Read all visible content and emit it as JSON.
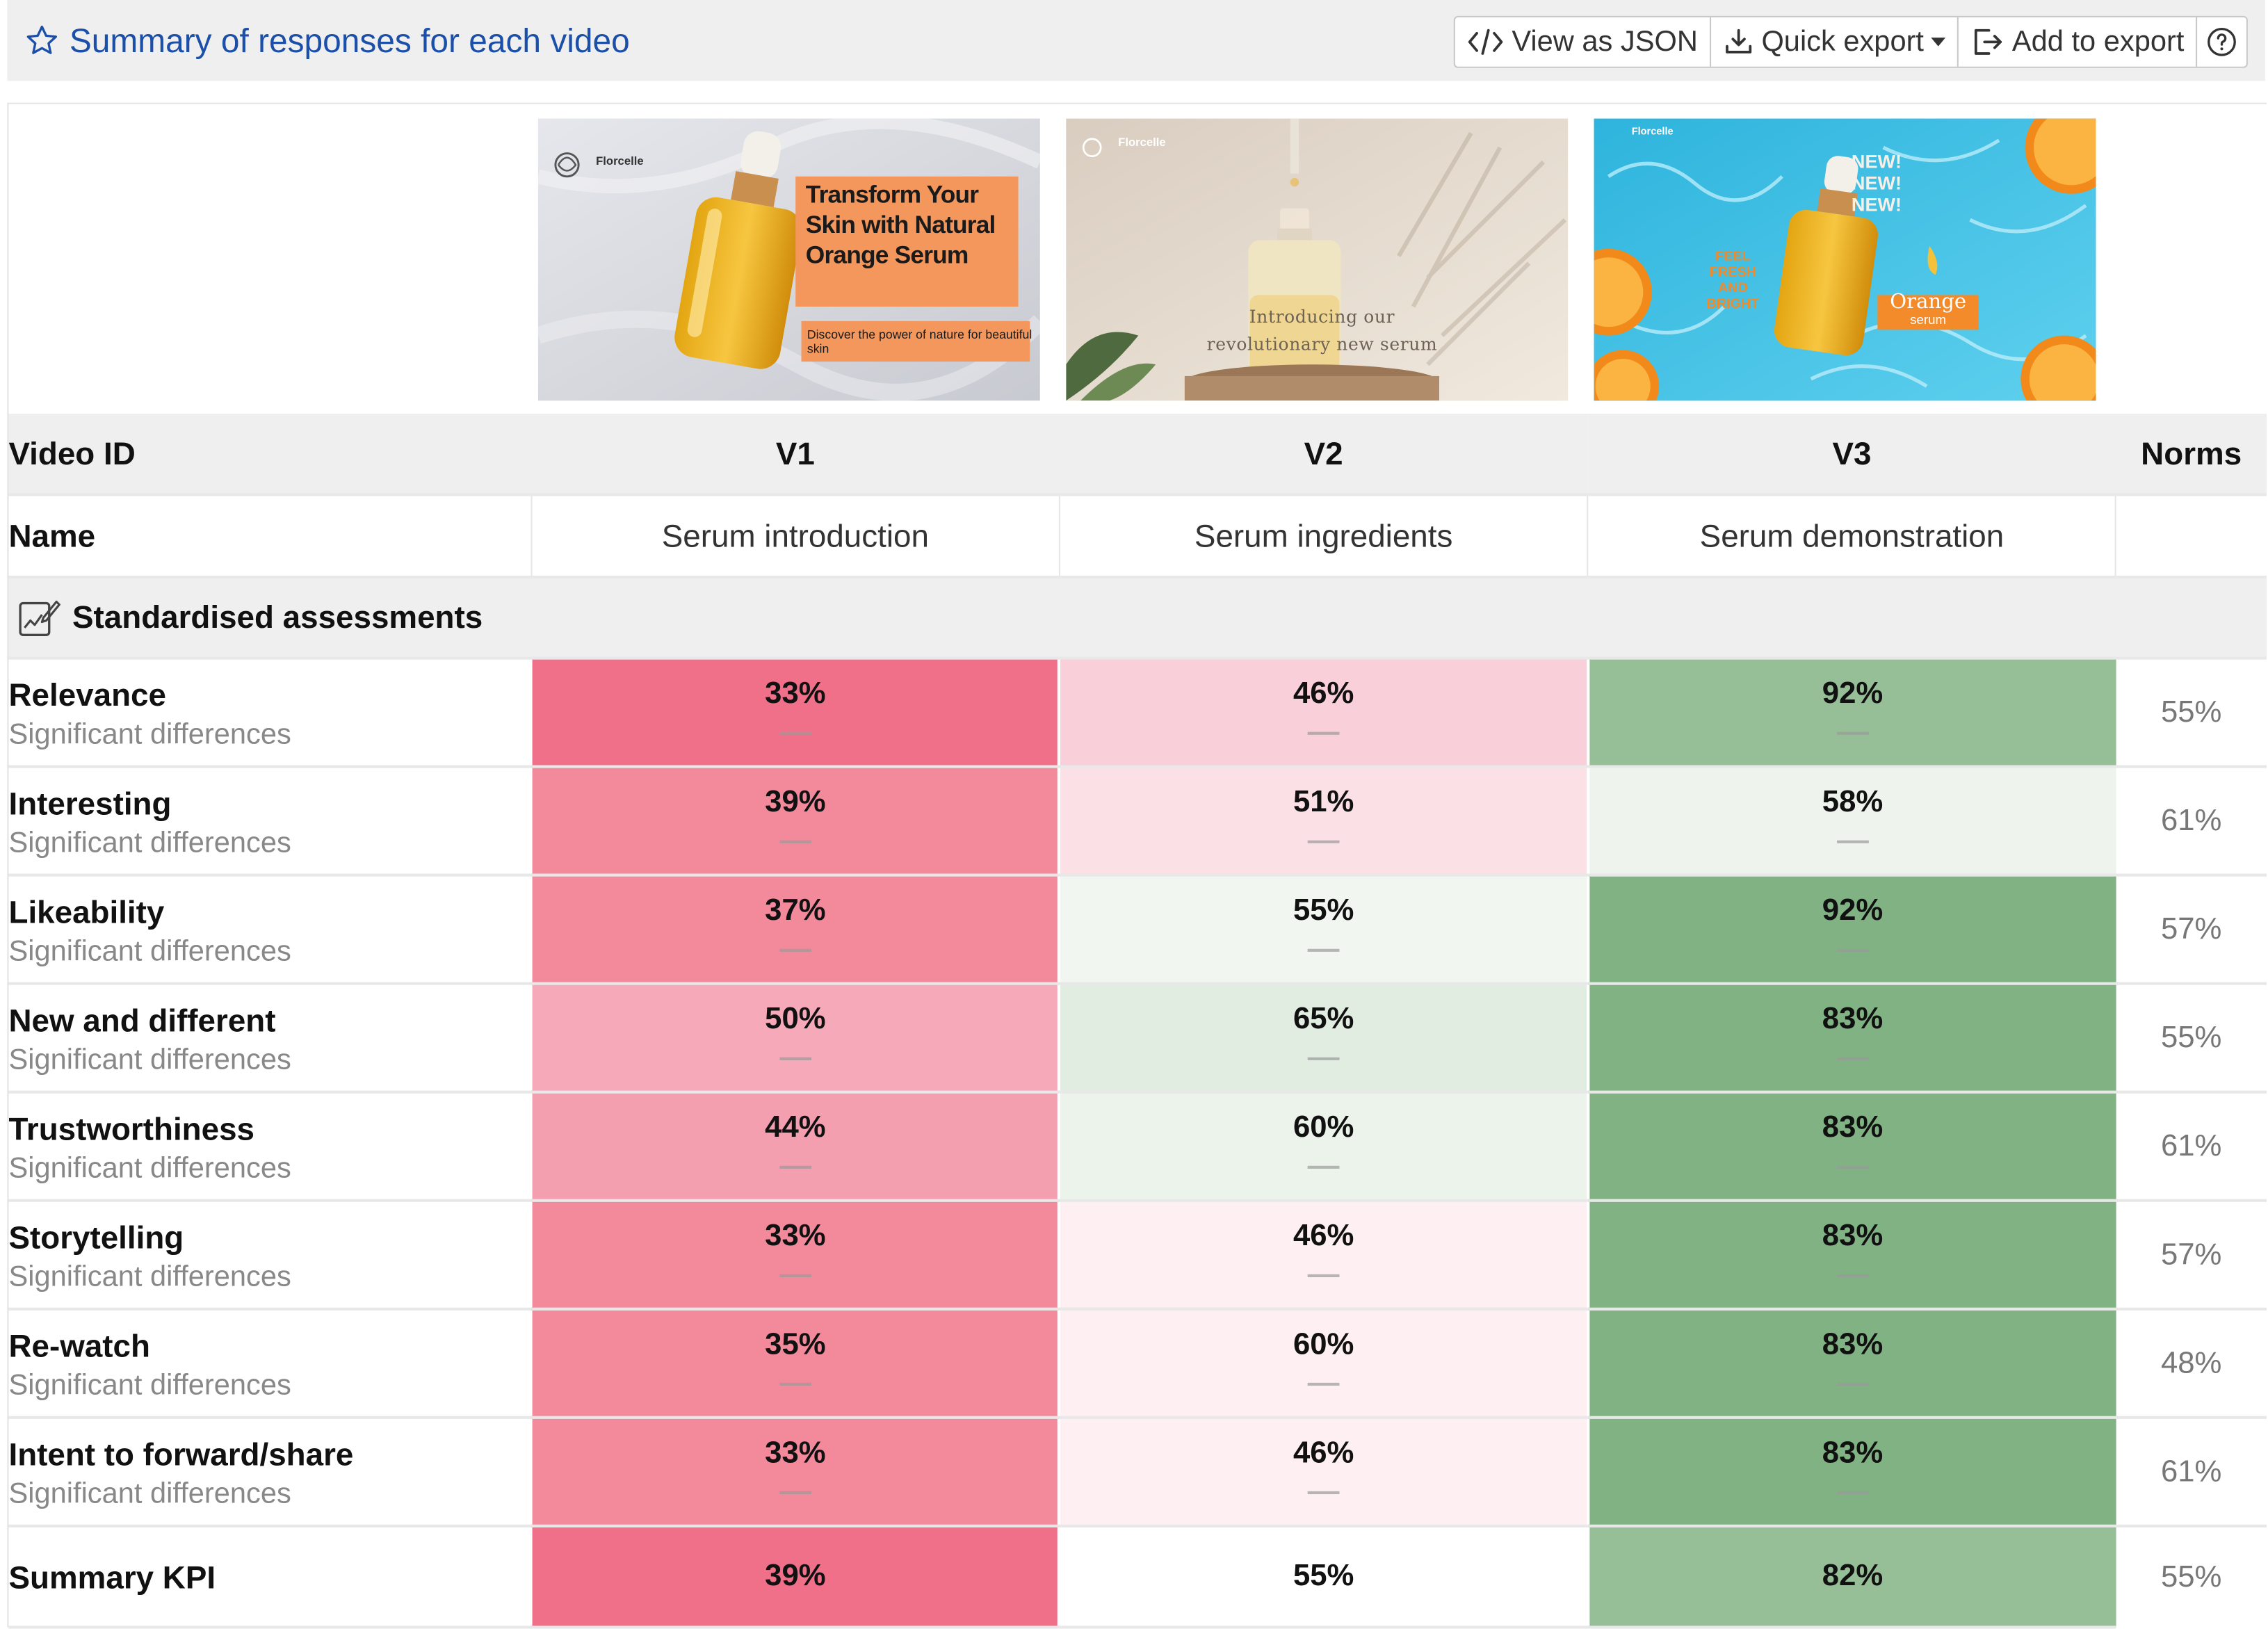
{
  "header": {
    "title": "Summary of responses for each video",
    "toolbar": {
      "view_json": "View as JSON",
      "quick_export": "Quick export",
      "add_to_export": "Add to export"
    }
  },
  "thumbs": [
    {
      "brand": "Florcelle",
      "headline": "Transform Your Skin with Natural Orange Serum",
      "sub": "Discover the power of nature for beautiful skin"
    },
    {
      "brand": "Florcelle",
      "text": "Introducing our revolutionary new serum"
    },
    {
      "brand": "Florcelle",
      "new": "NEW! NEW! NEW!",
      "feel": "FEEL FRESH AND BRIGHT",
      "tag1": "Orange",
      "tag2": "serum"
    }
  ],
  "table": {
    "video_id_label": "Video ID",
    "name_label": "Name",
    "norms_label": "Norms",
    "videos": [
      {
        "id": "V1",
        "name": "Serum introduction"
      },
      {
        "id": "V2",
        "name": "Serum ingredients"
      },
      {
        "id": "V3",
        "name": "Serum demonstration"
      }
    ],
    "section_label": "Standardised assessments",
    "sub_label": "Significant differences",
    "dash": "—",
    "metrics": [
      {
        "name": "Relevance",
        "values": [
          "33%",
          "46%",
          "92%"
        ],
        "colors": [
          "#f07089",
          "#f9cfd9",
          "#96bf97"
        ],
        "norm": "55%"
      },
      {
        "name": "Interesting",
        "values": [
          "39%",
          "51%",
          "58%"
        ],
        "colors": [
          "#f38a9c",
          "#fbe1e6",
          "#eef3ee"
        ],
        "norm": "61%"
      },
      {
        "name": "Likeability",
        "values": [
          "37%",
          "55%",
          "92%"
        ],
        "colors": [
          "#f38a9c",
          "#f1f6f0",
          "#80b283"
        ],
        "norm": "57%"
      },
      {
        "name": "New and different",
        "values": [
          "50%",
          "65%",
          "83%"
        ],
        "colors": [
          "#f6a9b9",
          "#e2ede2",
          "#80b283"
        ],
        "norm": "55%"
      },
      {
        "name": "Trustworthiness",
        "values": [
          "44%",
          "60%",
          "83%"
        ],
        "colors": [
          "#f49fb0",
          "#ebf3ea",
          "#80b283"
        ],
        "norm": "61%"
      },
      {
        "name": "Storytelling",
        "values": [
          "33%",
          "46%",
          "83%"
        ],
        "colors": [
          "#f38a9c",
          "#fdeff2",
          "#80b283"
        ],
        "norm": "57%"
      },
      {
        "name": "Re-watch",
        "values": [
          "35%",
          "60%",
          "83%"
        ],
        "colors": [
          "#f38a9c",
          "#fdeff2",
          "#80b283"
        ],
        "norm": "48%"
      },
      {
        "name": "Intent to forward/share",
        "values": [
          "33%",
          "46%",
          "83%"
        ],
        "colors": [
          "#f38a9c",
          "#fdeff2",
          "#80b283"
        ],
        "norm": "61%"
      }
    ],
    "kpi": {
      "name": "Summary KPI",
      "values": [
        "39%",
        "55%",
        "82%"
      ],
      "colors": [
        "#f07089",
        "#ffffff",
        "#96bf97"
      ],
      "norm": "55%"
    }
  }
}
